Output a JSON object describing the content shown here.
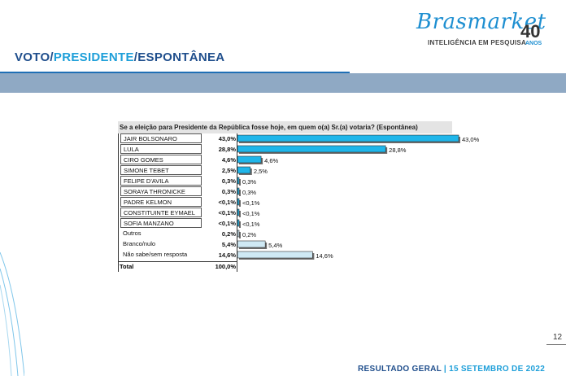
{
  "brand": {
    "name": "Brasmarket",
    "tagline": "INTELIGÊNCIA EM PESQUISA",
    "anniversary": "40",
    "anniversary_suffix": "ANOS"
  },
  "title": {
    "part1": "VOTO/",
    "part2": "PRESIDENTE",
    "part3": "/ESPONTÂNEA"
  },
  "colors": {
    "bar_fill": "#1fb6ea",
    "bar_shadow": "#6e6e6e",
    "bar_light": "#cfe9f4",
    "title_dark": "#1f4e8c",
    "title_accent": "#1e9fd9"
  },
  "chart_data": {
    "type": "table",
    "title": "Se a eleição para Presidente da República fosse hoje, em quem o(a) Sr.(a) votaria? (Espontânea)",
    "rows": [
      {
        "label": "JAIR BOLSONARO",
        "value": 43.0,
        "value_text": "43,0%",
        "bar_label": "43,0%",
        "style": "dark"
      },
      {
        "label": "LULA",
        "value": 28.8,
        "value_text": "28,8%",
        "bar_label": "28,8%",
        "style": "dark"
      },
      {
        "label": "CIRO GOMES",
        "value": 4.6,
        "value_text": "4,6%",
        "bar_label": "4,6%",
        "style": "dark"
      },
      {
        "label": "SIMONE TEBET",
        "value": 2.5,
        "value_text": "2,5%",
        "bar_label": "2,5%",
        "style": "dark"
      },
      {
        "label": "FELIPE D'AVILA",
        "value": 0.3,
        "value_text": "0,3%",
        "bar_label": "0,3%",
        "style": "dark"
      },
      {
        "label": "SORAYA THRONICKE",
        "value": 0.3,
        "value_text": "0,3%",
        "bar_label": "0,3%",
        "style": "dark"
      },
      {
        "label": "PADRE KELMON",
        "value": 0.05,
        "value_text": "<0,1%",
        "bar_label": "<0,1%",
        "style": "dark"
      },
      {
        "label": "CONSTITUINTE EYMAEL",
        "value": 0.05,
        "value_text": "<0,1%",
        "bar_label": "<0,1%",
        "style": "dark"
      },
      {
        "label": "SOFIA MANZANO",
        "value": 0.05,
        "value_text": "<0,1%",
        "bar_label": "<0,1%",
        "style": "dark"
      },
      {
        "label": "Outros",
        "value": 0.2,
        "value_text": "0,2%",
        "bar_label": "0,2%",
        "style": "light"
      },
      {
        "label": "Branco/nulo",
        "value": 5.4,
        "value_text": "5,4%",
        "bar_label": "5,4%",
        "style": "light"
      },
      {
        "label": "Não sabe/sem resposta",
        "value": 14.6,
        "value_text": "14,6%",
        "bar_label": "14,6%",
        "style": "light"
      }
    ],
    "total": {
      "label": "Total",
      "value_text": "100,0%"
    },
    "xlim": [
      0,
      43
    ]
  },
  "page_number": "12",
  "footer": {
    "left": "RESULTADO GERAL",
    "sep": " | ",
    "date": "15  SETEMBRO DE 2022"
  }
}
